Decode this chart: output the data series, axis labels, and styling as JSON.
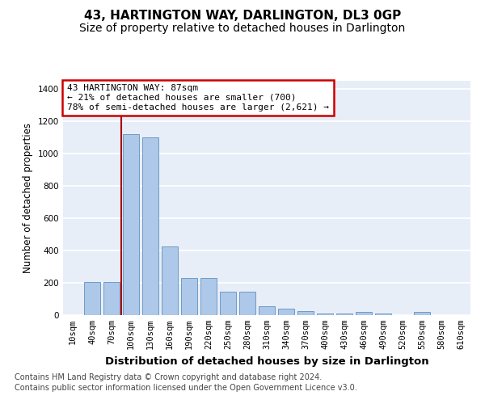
{
  "title": "43, HARTINGTON WAY, DARLINGTON, DL3 0GP",
  "subtitle": "Size of property relative to detached houses in Darlington",
  "xlabel": "Distribution of detached houses by size in Darlington",
  "ylabel": "Number of detached properties",
  "footer_line1": "Contains HM Land Registry data © Crown copyright and database right 2024.",
  "footer_line2": "Contains public sector information licensed under the Open Government Licence v3.0.",
  "bar_labels": [
    "10sqm",
    "40sqm",
    "70sqm",
    "100sqm",
    "130sqm",
    "160sqm",
    "190sqm",
    "220sqm",
    "250sqm",
    "280sqm",
    "310sqm",
    "340sqm",
    "370sqm",
    "400sqm",
    "430sqm",
    "460sqm",
    "490sqm",
    "520sqm",
    "550sqm",
    "580sqm",
    "610sqm"
  ],
  "bar_values": [
    0,
    205,
    205,
    1120,
    1100,
    425,
    230,
    230,
    145,
    145,
    55,
    38,
    25,
    12,
    12,
    20,
    12,
    0,
    18,
    0,
    0
  ],
  "bar_color": "#adc8e8",
  "bar_edgecolor": "#6090c0",
  "bg_color": "#e8eef8",
  "grid_color": "#ffffff",
  "property_line_color": "#aa0000",
  "annotation_text": "43 HARTINGTON WAY: 87sqm\n← 21% of detached houses are smaller (700)\n78% of semi-detached houses are larger (2,621) →",
  "annotation_box_color": "#cc0000",
  "ylim": [
    0,
    1450
  ],
  "yticks": [
    0,
    200,
    400,
    600,
    800,
    1000,
    1200,
    1400
  ],
  "title_fontsize": 11,
  "subtitle_fontsize": 10,
  "ylabel_fontsize": 8.5,
  "xlabel_fontsize": 9.5,
  "tick_fontsize": 7.5,
  "annotation_fontsize": 8,
  "footer_fontsize": 7
}
